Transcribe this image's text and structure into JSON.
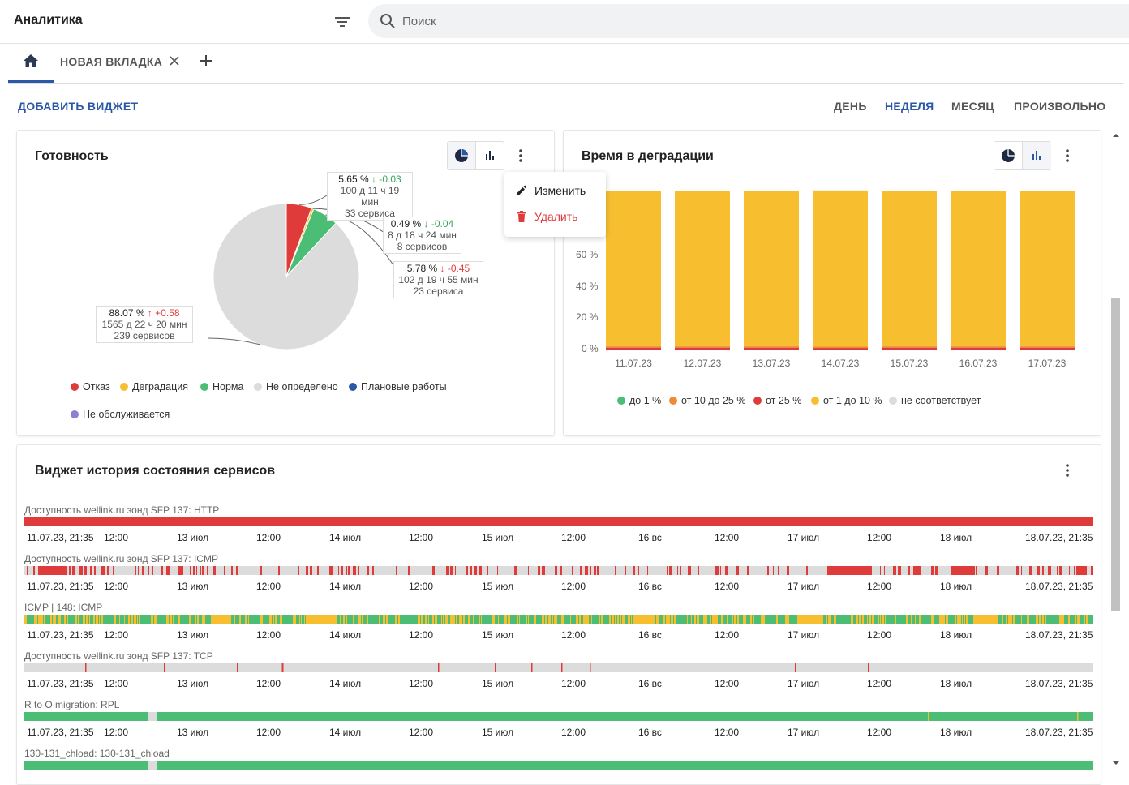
{
  "header": {
    "title": "Аналитика",
    "search_placeholder": "Поиск"
  },
  "tabs": {
    "new_tab_label": "НОВАЯ ВКЛАДКА"
  },
  "toolbar": {
    "add_widget": "ДОБАВИТЬ ВИДЖЕТ",
    "periods": [
      "ДЕНЬ",
      "НЕДЕЛЯ",
      "МЕСЯЦ",
      "ПРОИЗВОЛЬНО"
    ],
    "active_period": "НЕДЕЛЯ"
  },
  "readiness": {
    "title": "Готовность",
    "menu": {
      "edit": "Изменить",
      "delete": "Удалить"
    },
    "labels": [
      {
        "pct": "5.65 %",
        "delta": "↓ -0.03",
        "time": "100 д 11 ч 19 мин",
        "count": "33 сервиса"
      },
      {
        "pct": "0.49 %",
        "delta": "↓ -0.04",
        "time": "8 д 18 ч 24 мин",
        "count": "8 сервисов"
      },
      {
        "pct": "5.78 %",
        "delta": "↓ -0.45",
        "time": "102 д 19 ч 55 мин",
        "count": "23 сервиса"
      },
      {
        "pct": "88.07 %",
        "delta": "↑ +0.58",
        "time": "1565 д 22 ч 20 мин",
        "count": "239 сервисов"
      }
    ],
    "legend": [
      {
        "name": "Отказ",
        "color": "#e03b3b"
      },
      {
        "name": "Деградация",
        "color": "#f7bf2f"
      },
      {
        "name": "Норма",
        "color": "#4cbd75"
      },
      {
        "name": "Не определено",
        "color": "#dcdcdc"
      },
      {
        "name": "Плановые работы",
        "color": "#2a57a6"
      },
      {
        "name": "Не обслуживается",
        "color": "#8e7fd6"
      }
    ]
  },
  "chart_data": [
    {
      "type": "pie",
      "title": "Готовность",
      "categories": [
        "Отказ",
        "Деградация",
        "Норма",
        "Не определено"
      ],
      "values": [
        5.65,
        0.49,
        5.78,
        88.07
      ],
      "colors": [
        "#e03b3b",
        "#f7bf2f",
        "#4cbd75",
        "#dcdcdc"
      ]
    },
    {
      "type": "bar",
      "title": "Время в деградации",
      "categories": [
        "11.07.23",
        "12.07.23",
        "13.07.23",
        "14.07.23",
        "15.07.23",
        "16.07.23",
        "17.07.23"
      ],
      "ylim": [
        0,
        100
      ],
      "yticks": [
        "0 %",
        "20 %",
        "40 %",
        "60 %"
      ],
      "series": [
        {
          "name": "от 25 %",
          "color": "#e03b3b",
          "values": [
            1.2,
            1.2,
            1.2,
            1.0,
            1.2,
            1.2,
            1.2
          ]
        },
        {
          "name": "от 10 до 25 %",
          "color": "#f08b35",
          "values": [
            0.8,
            0.8,
            0.8,
            0.8,
            0.8,
            0.8,
            0.8
          ]
        },
        {
          "name": "от 1 до 10 %",
          "color": "#f7bf2f",
          "values": [
            98,
            98,
            98.5,
            98.8,
            98,
            98,
            98
          ]
        }
      ]
    }
  ],
  "degradation": {
    "title": "Время в деградации",
    "legend": [
      {
        "name": "до 1 %",
        "color": "#4cbd75"
      },
      {
        "name": "от 10 до 25 %",
        "color": "#f08b35"
      },
      {
        "name": "от 25 %",
        "color": "#e03b3b"
      },
      {
        "name": "от 1 до 10 %",
        "color": "#f7bf2f"
      },
      {
        "name": "не соответствует",
        "color": "#dcdcdc"
      }
    ]
  },
  "history": {
    "title": "Виджет история состояния сервисов",
    "ticks": [
      "11.07.23, 21:35",
      "12:00",
      "13 июл",
      "12:00",
      "14 июл",
      "12:00",
      "15 июл",
      "12:00",
      "16 вс",
      "12:00",
      "17 июл",
      "12:00",
      "18 июл",
      "18.07.23, 21:35"
    ],
    "rows": [
      {
        "label": "Доступность wellink.ru зонд SFP 137: HTTP",
        "pattern": "red"
      },
      {
        "label": "Доступность wellink.ru зонд SFP 137: ICMP",
        "pattern": "red-gray"
      },
      {
        "label": "ICMP | 148: ICMP",
        "pattern": "green-yellow"
      },
      {
        "label": "Доступность wellink.ru зонд SFP 137: TCP",
        "pattern": "gray-red"
      },
      {
        "label": "R to O migration: RPL",
        "pattern": "green"
      },
      {
        "label": "130-131_chload: 130-131_chload",
        "pattern": "green2"
      }
    ]
  }
}
